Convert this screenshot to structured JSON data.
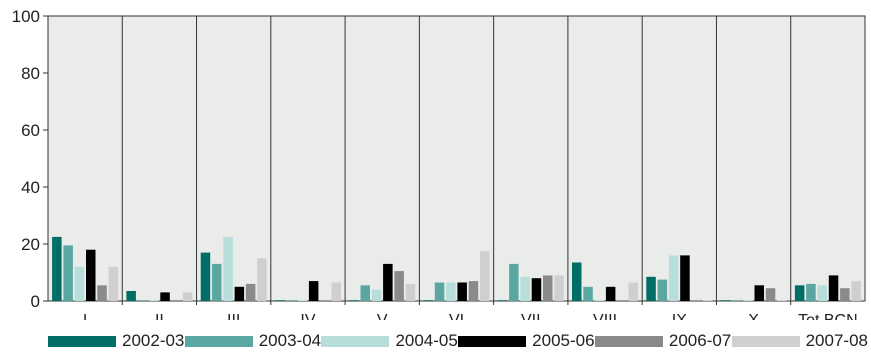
{
  "chart_data": {
    "type": "bar",
    "title": "",
    "xlabel": "",
    "ylabel": "",
    "ylim": [
      0,
      100
    ],
    "yticks": [
      0,
      20,
      40,
      60,
      80,
      100
    ],
    "grid": false,
    "legend_position": "bottom",
    "categories": [
      "I",
      "II",
      "III",
      "IV",
      "V",
      "VI",
      "VII",
      "VIII",
      "IX",
      "X",
      "Tot BCN"
    ],
    "series": [
      {
        "name": "2002-03",
        "color": "#006e66",
        "values": [
          22.5,
          3.5,
          17,
          0,
          0,
          0,
          0,
          13.5,
          8.5,
          0,
          5.5
        ]
      },
      {
        "name": "2003-04",
        "color": "#5aa7a2",
        "values": [
          19.5,
          0,
          13,
          0,
          5.5,
          6.5,
          13,
          5,
          7.5,
          0,
          6
        ]
      },
      {
        "name": "2004-05",
        "color": "#b7dedb",
        "values": [
          12,
          0,
          22.5,
          0,
          4,
          6.5,
          8.5,
          0,
          16,
          0,
          5.5
        ]
      },
      {
        "name": "2005-06",
        "color": "#000000",
        "values": [
          18,
          3,
          5,
          7,
          13,
          6.5,
          8,
          5,
          16,
          5.5,
          9
        ]
      },
      {
        "name": "2006-07",
        "color": "#8a8a8a",
        "values": [
          5.5,
          0,
          6,
          0,
          10.5,
          7,
          9,
          0,
          0,
          4.5,
          4.5
        ]
      },
      {
        "name": "2007-08",
        "color": "#cfcfcf",
        "values": [
          12,
          3,
          15,
          6.5,
          6,
          17.5,
          9,
          6.5,
          0,
          0,
          7
        ]
      }
    ]
  }
}
